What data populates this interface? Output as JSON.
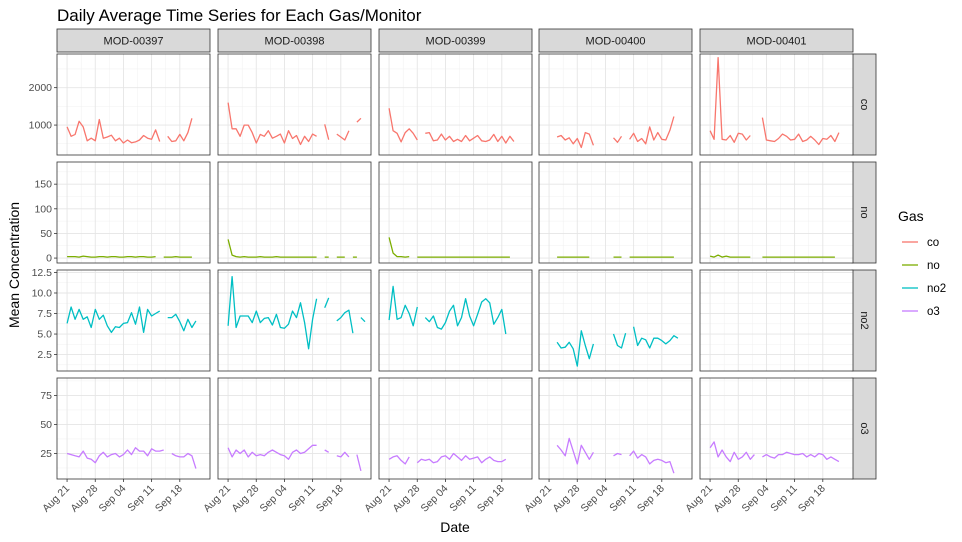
{
  "chart_data": {
    "type": "line",
    "title": "Daily Average Time Series for Each Gas/Monitor",
    "xlabel": "Date",
    "ylabel": "Mean Concentration",
    "legend_title": "Gas",
    "legend_position": "right",
    "grid": true,
    "x_ticks": [
      "Aug 21",
      "Aug 28",
      "Sep 04",
      "Sep 11",
      "Sep 18"
    ],
    "x_tick_days": [
      0,
      7,
      14,
      21,
      28
    ],
    "monitors": [
      "MOD-00397",
      "MOD-00398",
      "MOD-00399",
      "MOD-00400",
      "MOD-00401"
    ],
    "gases": [
      {
        "name": "co",
        "color": "#F8766D",
        "ylim": [
          200,
          2900
        ],
        "y_ticks": [
          "1000",
          "2000"
        ],
        "y_tick_values": [
          1000,
          2000
        ]
      },
      {
        "name": "no",
        "color": "#7CAE00",
        "ylim": [
          -10,
          195
        ],
        "y_ticks": [
          "0",
          "50",
          "100",
          "150"
        ],
        "y_tick_values": [
          0,
          50,
          100,
          150
        ]
      },
      {
        "name": "no2",
        "color": "#00BFC4",
        "ylim": [
          0.5,
          12.8
        ],
        "y_ticks": [
          "2.5",
          "5.0",
          "7.5",
          "10.0",
          "12.5"
        ],
        "y_tick_values": [
          2.5,
          5.0,
          7.5,
          10.0,
          12.5
        ]
      },
      {
        "name": "o3",
        "color": "#C77CFF",
        "ylim": [
          3,
          90
        ],
        "y_ticks": [
          "25",
          "50",
          "75"
        ],
        "y_tick_values": [
          25,
          50,
          75
        ]
      }
    ],
    "series": {
      "co": [
        [
          950,
          700,
          750,
          1100,
          950,
          580,
          650,
          580,
          1150,
          650,
          680,
          730,
          580,
          650,
          520,
          600,
          530,
          550,
          600,
          720,
          650,
          620,
          870,
          560,
          null,
          700,
          560,
          580,
          750,
          580,
          800,
          1180
        ],
        [
          1600,
          900,
          900,
          700,
          1000,
          1000,
          800,
          520,
          750,
          700,
          850,
          650,
          700,
          760,
          520,
          850,
          640,
          720,
          480,
          700,
          560,
          760,
          700,
          null,
          1020,
          610,
          null,
          760,
          680,
          600,
          850,
          null,
          1080,
          1180
        ],
        [
          1450,
          850,
          780,
          550,
          800,
          900,
          780,
          600,
          null,
          780,
          800,
          580,
          600,
          760,
          600,
          700,
          560,
          620,
          560,
          720,
          580,
          650,
          720,
          580,
          560,
          600,
          750,
          560,
          700,
          520,
          700,
          560
        ],
        [
          null,
          null,
          680,
          720,
          600,
          660,
          500,
          640,
          400,
          800,
          760,
          460,
          null,
          null,
          null,
          null,
          660,
          540,
          700,
          null,
          620,
          780,
          560,
          640,
          500,
          950,
          600,
          800,
          620,
          600,
          860,
          1230
        ],
        [
          850,
          620,
          2800,
          620,
          600,
          720,
          540,
          780,
          760,
          600,
          720,
          null,
          null,
          1200,
          600,
          580,
          560,
          640,
          760,
          700,
          600,
          620,
          760,
          560,
          600,
          700,
          600,
          480,
          640,
          620,
          720,
          560,
          800
        ]
      ],
      "no": [
        [
          3,
          3,
          3,
          2,
          4,
          3,
          2,
          2,
          3,
          3,
          2,
          3,
          3,
          2,
          2,
          3,
          3,
          2,
          3,
          3,
          2,
          2,
          3,
          null,
          2,
          2,
          2,
          3,
          2,
          2,
          2,
          2
        ],
        [
          38,
          6,
          3,
          2,
          3,
          2,
          2,
          2,
          3,
          2,
          2,
          2,
          3,
          2,
          2,
          2,
          2,
          2,
          2,
          2,
          2,
          2,
          2,
          null,
          2,
          2,
          null,
          2,
          2,
          2,
          null,
          2,
          2
        ],
        [
          42,
          10,
          3,
          3,
          2,
          3,
          null,
          2,
          2,
          2,
          2,
          2,
          2,
          2,
          2,
          2,
          2,
          2,
          2,
          2,
          2,
          2,
          2,
          2,
          2,
          2,
          2,
          2,
          2,
          2,
          2
        ],
        [
          null,
          null,
          2,
          2,
          2,
          2,
          2,
          2,
          2,
          2,
          2,
          null,
          null,
          null,
          null,
          null,
          2,
          2,
          2,
          null,
          2,
          2,
          2,
          2,
          2,
          2,
          2,
          2,
          2,
          2,
          2,
          2
        ],
        [
          4,
          2,
          6,
          2,
          4,
          2,
          2,
          2,
          2,
          2,
          2,
          null,
          null,
          2,
          2,
          2,
          2,
          2,
          2,
          2,
          2,
          2,
          2,
          2,
          2,
          2,
          2,
          2,
          2,
          2,
          2,
          2
        ]
      ],
      "no2": [
        [
          6.3,
          8.3,
          6.8,
          8.0,
          6.8,
          7.1,
          5.8,
          8.0,
          6.8,
          7.3,
          6.0,
          5.2,
          5.9,
          5.8,
          6.3,
          6.4,
          7.6,
          6.2,
          8.3,
          5.2,
          8.0,
          7.2,
          7.5,
          7.8,
          null,
          7.0,
          7.0,
          7.4,
          6.5,
          5.4,
          6.8,
          5.8,
          6.6
        ],
        [
          6.0,
          12.0,
          5.8,
          7.2,
          7.2,
          7.2,
          6.4,
          7.8,
          6.4,
          6.9,
          7.0,
          6.1,
          7.4,
          5.8,
          5.7,
          6.2,
          7.8,
          7.0,
          8.8,
          6.4,
          3.2,
          6.8,
          9.3,
          null,
          8.2,
          9.4,
          null,
          6.6,
          7.0,
          7.6,
          7.9,
          5.1,
          null,
          7.0,
          6.5
        ],
        [
          6.7,
          10.8,
          6.8,
          7.0,
          8.5,
          7.5,
          6.0,
          8.3,
          null,
          7.0,
          6.5,
          7.2,
          5.8,
          5.6,
          6.4,
          7.8,
          8.5,
          6.0,
          7.0,
          9.3,
          7.2,
          6.0,
          7.4,
          8.9,
          9.3,
          8.8,
          6.2,
          7.0,
          8.0,
          5.0
        ],
        [
          null,
          null,
          4.0,
          3.3,
          3.4,
          4.0,
          3.2,
          1.1,
          5.4,
          3.6,
          2.0,
          3.8,
          null,
          null,
          null,
          null,
          5.0,
          3.6,
          3.3,
          5.1,
          null,
          5.9,
          3.6,
          4.5,
          4.3,
          3.3,
          4.5,
          4.5,
          4.2,
          3.8,
          4.2,
          4.8,
          4.5
        ]
      ],
      "o3": [
        [
          25,
          24,
          23,
          22,
          27,
          21,
          20,
          17,
          23,
          26,
          22,
          24,
          25,
          22,
          24,
          28,
          24,
          30,
          27,
          27,
          23,
          29,
          27,
          27,
          28,
          null,
          25,
          23,
          22,
          22,
          25,
          23,
          12
        ],
        [
          30,
          22,
          28,
          25,
          28,
          22,
          26,
          23,
          24,
          23,
          26,
          28,
          26,
          24,
          23,
          20,
          26,
          28,
          25,
          26,
          29,
          32,
          32,
          null,
          28,
          26,
          null,
          23,
          22,
          26,
          22,
          null,
          24,
          10
        ],
        [
          20,
          22,
          23,
          19,
          16,
          22,
          null,
          17,
          20,
          19,
          20,
          17,
          18,
          22,
          23,
          20,
          25,
          22,
          19,
          23,
          20,
          21,
          22,
          17,
          20,
          22,
          19,
          18,
          18,
          20
        ],
        [
          null,
          null,
          32,
          28,
          23,
          38,
          27,
          16,
          32,
          26,
          20,
          26,
          null,
          null,
          null,
          null,
          23,
          25,
          24,
          null,
          23,
          27,
          21,
          24,
          22,
          16,
          19,
          20,
          19,
          17,
          18,
          8
        ],
        [
          30,
          35,
          22,
          28,
          22,
          18,
          26,
          20,
          22,
          26,
          20,
          24,
          null,
          22,
          24,
          22,
          21,
          24,
          24,
          26,
          25,
          24,
          24,
          25,
          22,
          24,
          22,
          25,
          24,
          20,
          22,
          20,
          18
        ]
      ]
    }
  }
}
